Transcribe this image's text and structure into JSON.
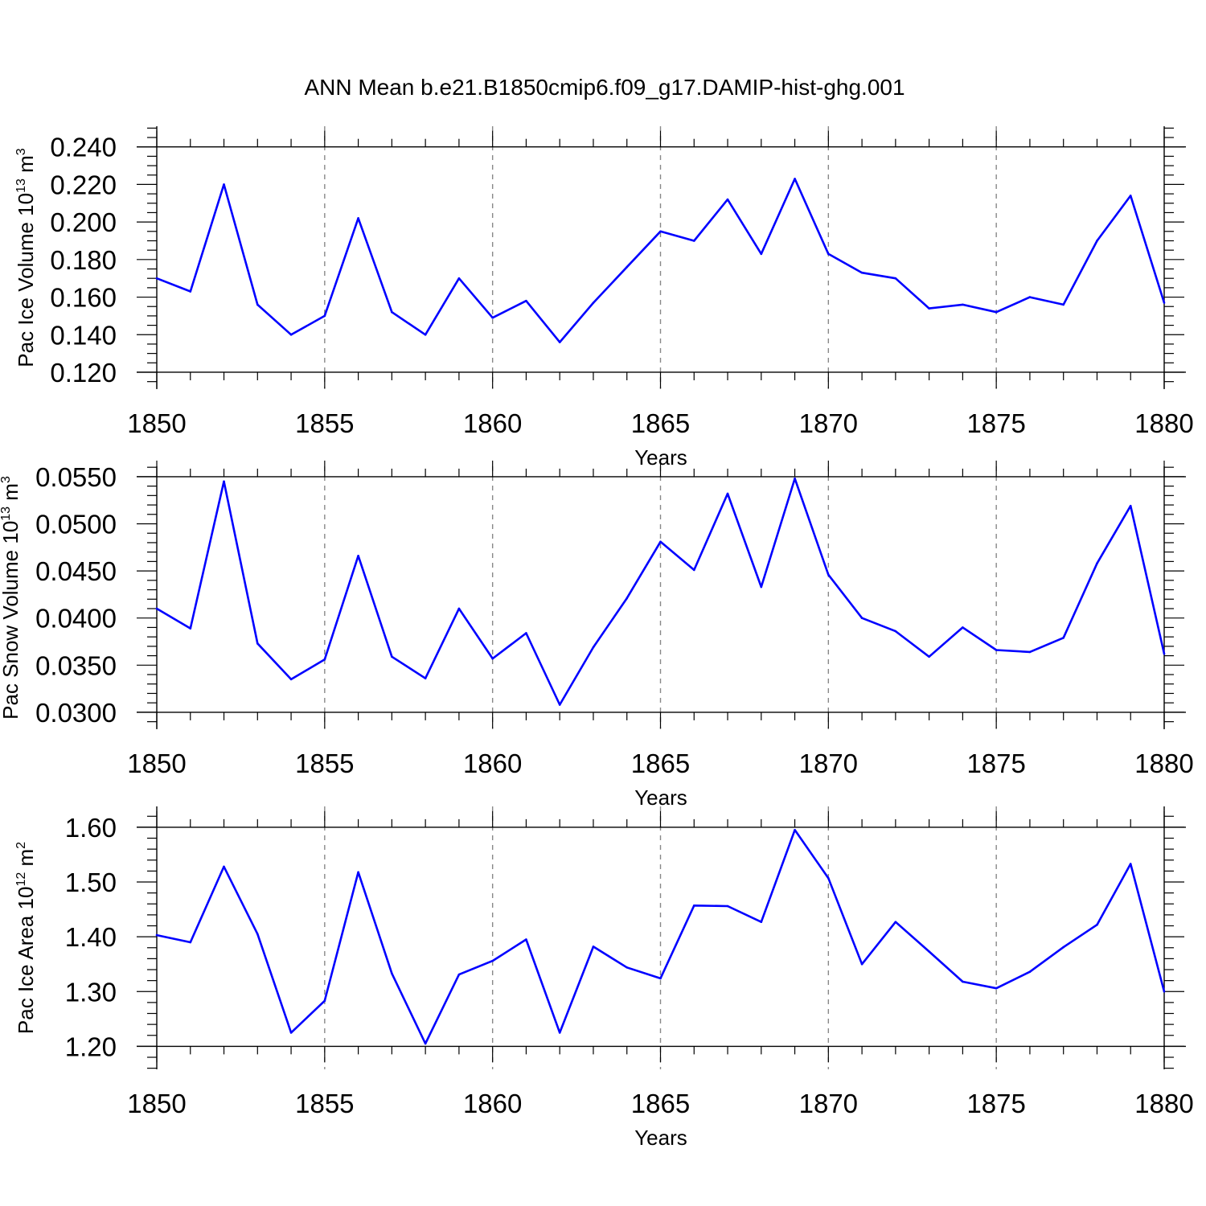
{
  "title": "ANN Mean b.e21.B1850cmip6.f09_g17.DAMIP-hist-ghg.001",
  "colors": {
    "line": "#0000ff",
    "axis": "#000000",
    "grid": "#888888"
  },
  "chart_data": [
    {
      "type": "line",
      "name": "ice-volume",
      "title": "",
      "xlabel": "Years",
      "ylabel_parts": [
        "Pac Ice Volume 10",
        "13",
        " m",
        "3"
      ],
      "xlim": [
        1850,
        1880
      ],
      "xticks": [
        "1850",
        "1855",
        "1860",
        "1865",
        "1870",
        "1875",
        "1880"
      ],
      "ylim": [
        0.12,
        0.24
      ],
      "yticks": [
        "0.120",
        "0.140",
        "0.160",
        "0.180",
        "0.200",
        "0.220",
        "0.240"
      ],
      "ytick_values": [
        0.12,
        0.14,
        0.16,
        0.18,
        0.2,
        0.22,
        0.24
      ],
      "ybounds": [
        0.111,
        0.251
      ],
      "yminor_step": 0.005,
      "x": [
        1850,
        1851,
        1852,
        1853,
        1854,
        1855,
        1856,
        1857,
        1858,
        1859,
        1860,
        1861,
        1862,
        1863,
        1864,
        1865,
        1866,
        1867,
        1868,
        1869,
        1870,
        1871,
        1872,
        1873,
        1874,
        1875,
        1876,
        1877,
        1878,
        1879,
        1880
      ],
      "values": [
        0.17,
        0.163,
        0.22,
        0.156,
        0.14,
        0.15,
        0.202,
        0.152,
        0.14,
        0.17,
        0.149,
        0.158,
        0.136,
        0.157,
        0.176,
        0.195,
        0.19,
        0.212,
        0.183,
        0.223,
        0.183,
        0.173,
        0.17,
        0.154,
        0.156,
        0.152,
        0.16,
        0.156,
        0.19,
        0.214,
        0.157
      ]
    },
    {
      "type": "line",
      "name": "snow-volume",
      "title": "",
      "xlabel": "Years",
      "ylabel_parts": [
        "Pac Snow Volume 10",
        "13",
        " m",
        "3"
      ],
      "xlim": [
        1850,
        1880
      ],
      "xticks": [
        "1850",
        "1855",
        "1860",
        "1865",
        "1870",
        "1875",
        "1880"
      ],
      "ylim": [
        0.03,
        0.055
      ],
      "yticks": [
        "0.0300",
        "0.0350",
        "0.0400",
        "0.0450",
        "0.0500",
        "0.0550"
      ],
      "ytick_values": [
        0.03,
        0.035,
        0.04,
        0.045,
        0.05,
        0.055
      ],
      "ybounds": [
        0.0282,
        0.0561
      ],
      "yminor_step": 0.001,
      "x": [
        1850,
        1851,
        1852,
        1853,
        1854,
        1855,
        1856,
        1857,
        1858,
        1859,
        1860,
        1861,
        1862,
        1863,
        1864,
        1865,
        1866,
        1867,
        1868,
        1869,
        1870,
        1871,
        1872,
        1873,
        1874,
        1875,
        1876,
        1877,
        1878,
        1879,
        1880
      ],
      "values": [
        0.041,
        0.0389,
        0.0545,
        0.0373,
        0.0335,
        0.0356,
        0.0466,
        0.0359,
        0.0336,
        0.041,
        0.0357,
        0.0384,
        0.0308,
        0.0369,
        0.0421,
        0.0481,
        0.0451,
        0.0532,
        0.0433,
        0.0548,
        0.0446,
        0.04,
        0.0386,
        0.0359,
        0.039,
        0.0366,
        0.0364,
        0.0379,
        0.0458,
        0.0519,
        0.0362
      ]
    },
    {
      "type": "line",
      "name": "ice-area",
      "title": "",
      "xlabel": "Years",
      "ylabel_parts": [
        "Pac Ice Area 10",
        "12",
        " m",
        "2"
      ],
      "xlim": [
        1850,
        1880
      ],
      "xticks": [
        "1850",
        "1855",
        "1860",
        "1865",
        "1870",
        "1875",
        "1880"
      ],
      "ylim": [
        1.2,
        1.6
      ],
      "yticks": [
        "1.20",
        "1.30",
        "1.40",
        "1.50",
        "1.60"
      ],
      "ytick_values": [
        1.2,
        1.3,
        1.4,
        1.5,
        1.6
      ],
      "ybounds": [
        1.158,
        1.638
      ],
      "yminor_step": 0.02,
      "x": [
        1850,
        1851,
        1852,
        1853,
        1854,
        1855,
        1856,
        1857,
        1858,
        1859,
        1860,
        1861,
        1862,
        1863,
        1864,
        1865,
        1866,
        1867,
        1868,
        1869,
        1870,
        1871,
        1872,
        1873,
        1874,
        1875,
        1876,
        1877,
        1878,
        1879,
        1880
      ],
      "values": [
        1.403,
        1.39,
        1.528,
        1.405,
        1.225,
        1.283,
        1.518,
        1.333,
        1.205,
        1.331,
        1.356,
        1.395,
        1.225,
        1.382,
        1.344,
        1.324,
        1.457,
        1.456,
        1.427,
        1.595,
        1.507,
        1.35,
        1.427,
        1.373,
        1.318,
        1.306,
        1.336,
        1.381,
        1.422,
        1.533,
        1.3
      ]
    }
  ]
}
